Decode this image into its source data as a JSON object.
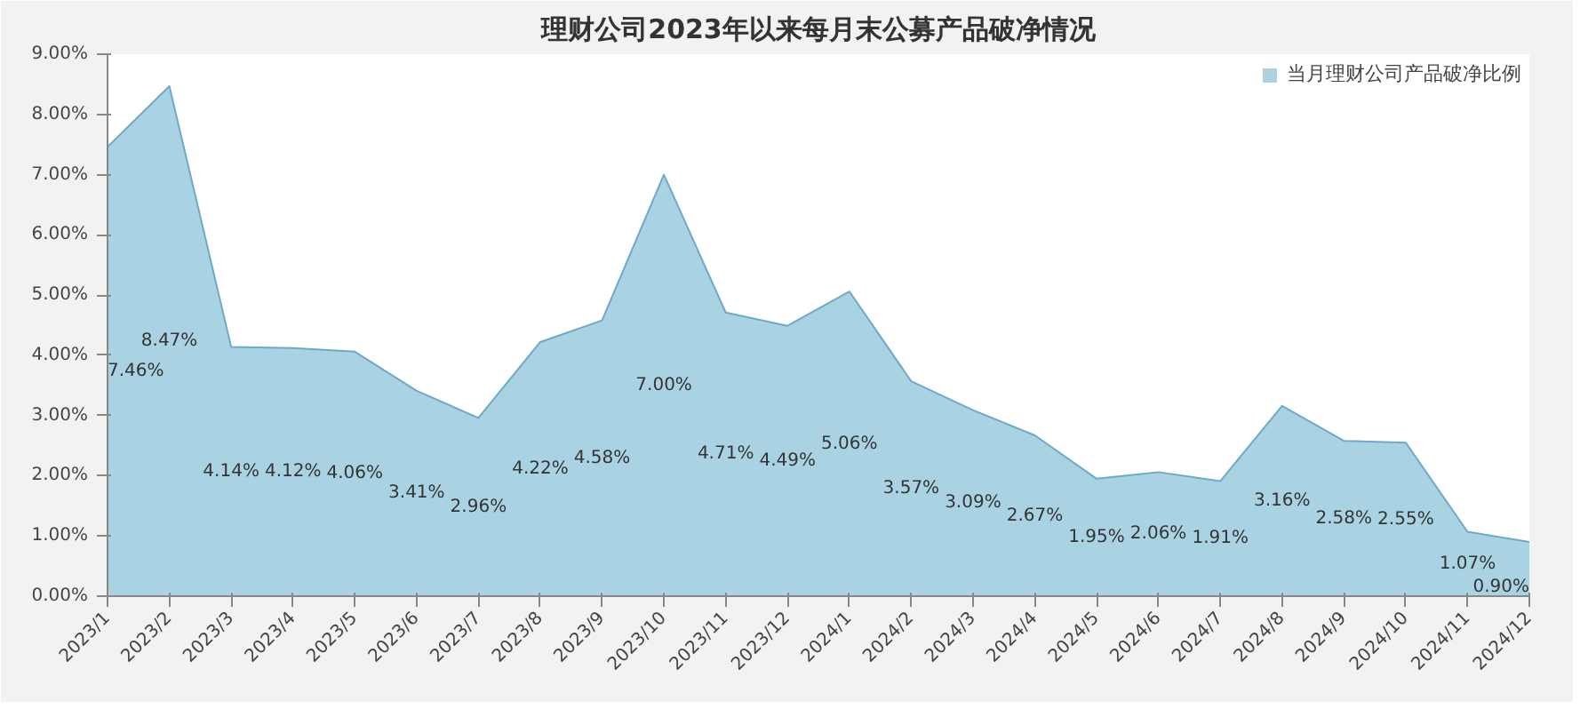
{
  "chart_data": {
    "type": "area",
    "title": "理财公司2023年以来每月末公募产品破净情况",
    "categories": [
      "2023/1",
      "2023/2",
      "2023/3",
      "2023/4",
      "2023/5",
      "2023/6",
      "2023/7",
      "2023/8",
      "2023/9",
      "2023/10",
      "2023/11",
      "2023/12",
      "2024/1",
      "2024/2",
      "2024/3",
      "2024/4",
      "2024/5",
      "2024/6",
      "2024/7",
      "2024/8",
      "2024/9",
      "2024/10",
      "2024/11",
      "2024/12"
    ],
    "series": [
      {
        "name": "当月理财公司产品破净比例",
        "color": "#a9d3e3",
        "values": [
          7.46,
          8.47,
          4.14,
          4.12,
          4.06,
          3.41,
          2.96,
          4.22,
          4.58,
          7.0,
          4.71,
          4.49,
          5.06,
          3.57,
          3.09,
          2.67,
          1.95,
          2.06,
          1.91,
          3.16,
          2.58,
          2.55,
          1.07,
          0.9
        ]
      }
    ],
    "value_labels": [
      "7.46%",
      "8.47%",
      "4.14%",
      "4.12%",
      "4.06%",
      "3.41%",
      "2.96%",
      "4.22%",
      "4.58%",
      "7.00%",
      "4.71%",
      "4.49%",
      "5.06%",
      "3.57%",
      "3.09%",
      "2.67%",
      "1.95%",
      "2.06%",
      "1.91%",
      "3.16%",
      "2.58%",
      "2.55%",
      "1.07%",
      "0.90%"
    ],
    "ylim": [
      0,
      9
    ],
    "yticks": [
      {
        "value": 0,
        "label": "0.00%"
      },
      {
        "value": 1,
        "label": "1.00%"
      },
      {
        "value": 2,
        "label": "2.00%"
      },
      {
        "value": 3,
        "label": "3.00%"
      },
      {
        "value": 4,
        "label": "4.00%"
      },
      {
        "value": 5,
        "label": "5.00%"
      },
      {
        "value": 6,
        "label": "6.00%"
      },
      {
        "value": 7,
        "label": "7.00%"
      },
      {
        "value": 8,
        "label": "8.00%"
      },
      {
        "value": 9,
        "label": "9.00%"
      }
    ],
    "legend": "top right",
    "grid": false
  }
}
